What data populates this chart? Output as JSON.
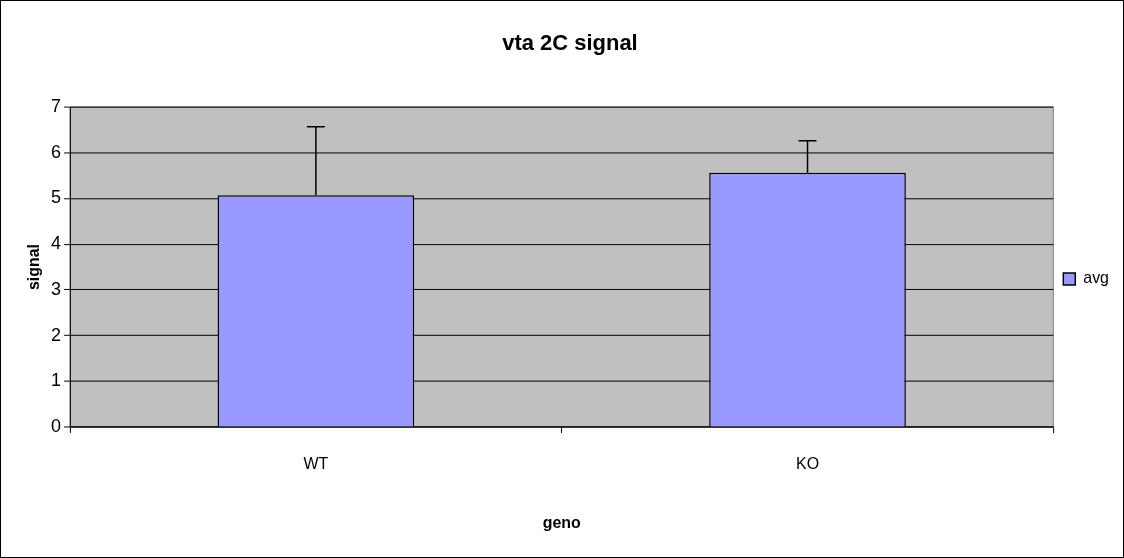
{
  "chart_data": {
    "type": "bar",
    "title": "vta 2C signal",
    "xlabel": "geno",
    "ylabel": "signal",
    "categories": [
      "WT",
      "KO"
    ],
    "series": [
      {
        "name": "avg",
        "color": "#9999ff",
        "values": [
          5.07,
          5.56
        ],
        "errors": [
          [
            5.07,
            6.57
          ],
          [
            5.56,
            6.26
          ]
        ]
      }
    ],
    "ylim": [
      0,
      7
    ],
    "yticks": [
      0,
      1,
      2,
      3,
      4,
      5,
      6,
      7
    ],
    "grid": "y",
    "legend": "right"
  }
}
